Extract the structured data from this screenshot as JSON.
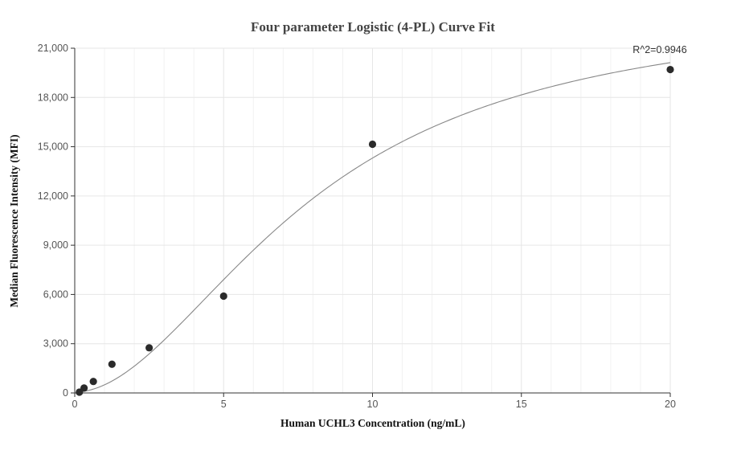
{
  "chart_data": {
    "type": "scatter",
    "title": "Four parameter Logistic (4-PL) Curve Fit",
    "xlabel": "Human UCHL3 Concentration (ng/mL)",
    "ylabel": "Median Fluorescence Intensity (MFI)",
    "xlim": [
      0,
      20
    ],
    "ylim": [
      0,
      21000
    ],
    "x_ticks": [
      0,
      5,
      10,
      15,
      20
    ],
    "x_tick_labels": [
      "0",
      "5",
      "10",
      "15",
      "20"
    ],
    "y_ticks": [
      0,
      3000,
      6000,
      9000,
      12000,
      15000,
      18000,
      21000
    ],
    "y_tick_labels": [
      "0",
      "3,000",
      "6,000",
      "9,000",
      "12,000",
      "15,000",
      "18,000",
      "21,000"
    ],
    "grid": true,
    "legend": "none",
    "points": {
      "x": [
        0.156,
        0.313,
        0.625,
        1.25,
        2.5,
        5,
        10,
        20
      ],
      "y": [
        50,
        300,
        700,
        1750,
        2750,
        5900,
        15150,
        19700
      ]
    },
    "fit_curve": {
      "model": "4PL",
      "x_range": [
        0.156,
        20
      ]
    },
    "annotation": "R^2=0.9946",
    "colors": {
      "point": "#2b2b2b",
      "curve": "#888888",
      "grid": "#e6e6e6",
      "axis": "#333333"
    }
  }
}
